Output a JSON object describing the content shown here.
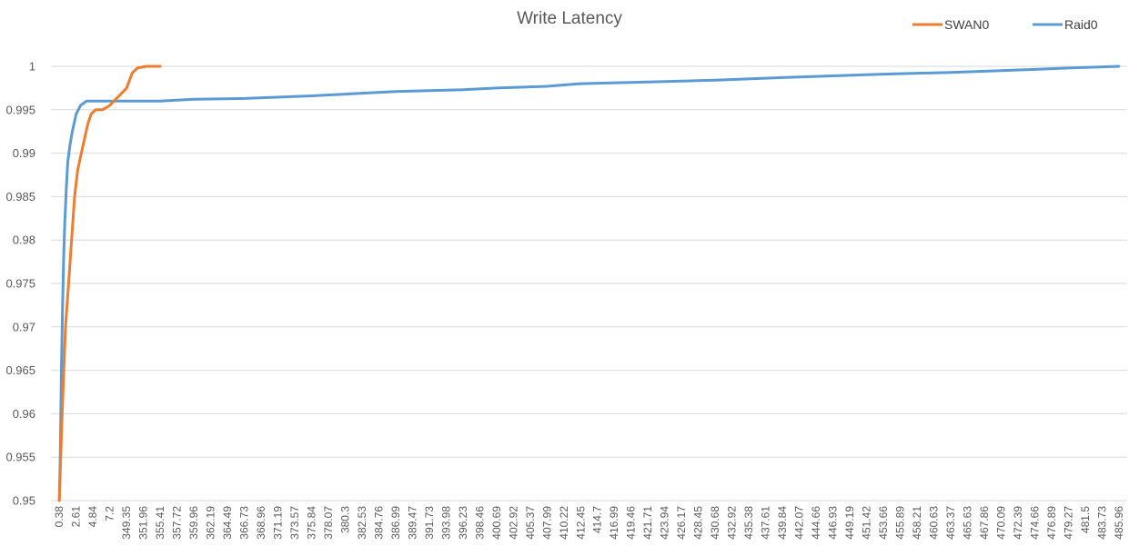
{
  "chart_data": {
    "type": "line",
    "title": "Write Latency",
    "xlabel": "",
    "ylabel": "",
    "ylim": [
      0.95,
      1.0
    ],
    "yticks": [
      0.95,
      0.955,
      0.96,
      0.965,
      0.97,
      0.975,
      0.98,
      0.985,
      0.99,
      0.995,
      1
    ],
    "ytick_labels": [
      "0.95",
      "0.955",
      "0.96",
      "0.965",
      "0.97",
      "0.975",
      "0.98",
      "0.985",
      "0.99",
      "0.995",
      "1"
    ],
    "xtick_labels": [
      "0.38",
      "2.61",
      "4.84",
      "7.2",
      "349.35",
      "351.96",
      "355.41",
      "357.72",
      "359.96",
      "362.19",
      "364.49",
      "366.73",
      "368.96",
      "371.19",
      "373.57",
      "375.84",
      "378.07",
      "380.3",
      "382.53",
      "384.76",
      "386.99",
      "389.47",
      "391.73",
      "393.98",
      "396.23",
      "398.46",
      "400.69",
      "402.92",
      "405.37",
      "407.99",
      "410.22",
      "412.45",
      "414.7",
      "416.99",
      "419.46",
      "421.71",
      "423.94",
      "426.17",
      "428.45",
      "430.68",
      "432.92",
      "435.38",
      "437.61",
      "439.84",
      "442.07",
      "444.66",
      "446.93",
      "449.19",
      "451.42",
      "453.66",
      "455.89",
      "458.21",
      "460.63",
      "463.37",
      "465.63",
      "467.86",
      "470.09",
      "472.39",
      "474.66",
      "476.89",
      "479.27",
      "481.5",
      "483.73",
      "485.96"
    ],
    "grid": true,
    "legend_position": "top-right",
    "series": [
      {
        "name": "SWAN0",
        "color": "#ED7D31",
        "points": [
          [
            0.38,
            0.95
          ],
          [
            0.75,
            0.96
          ],
          [
            1.2,
            0.97
          ],
          [
            1.6,
            0.975
          ],
          [
            2.0,
            0.98
          ],
          [
            2.4,
            0.985
          ],
          [
            2.8,
            0.988
          ],
          [
            3.3,
            0.99
          ],
          [
            3.8,
            0.992
          ],
          [
            4.2,
            0.9935
          ],
          [
            4.6,
            0.9945
          ],
          [
            5.2,
            0.995
          ],
          [
            6.2,
            0.995
          ],
          [
            7.2,
            0.9955
          ],
          [
            349.35,
            0.9975
          ],
          [
            350.2,
            0.9992
          ],
          [
            351.0,
            0.9998
          ],
          [
            352.5,
            1.0
          ],
          [
            355.41,
            1.0
          ]
        ]
      },
      {
        "name": "Raid0",
        "color": "#5B9BD5",
        "points": [
          [
            0.38,
            0.95
          ],
          [
            0.5,
            0.955
          ],
          [
            0.65,
            0.965
          ],
          [
            0.8,
            0.972
          ],
          [
            0.95,
            0.978
          ],
          [
            1.1,
            0.982
          ],
          [
            1.3,
            0.986
          ],
          [
            1.5,
            0.989
          ],
          [
            1.8,
            0.991
          ],
          [
            2.1,
            0.9925
          ],
          [
            2.61,
            0.9945
          ],
          [
            3.2,
            0.9955
          ],
          [
            4.0,
            0.996
          ],
          [
            7.2,
            0.996
          ],
          [
            349.35,
            0.996
          ],
          [
            355.41,
            0.996
          ],
          [
            359.96,
            0.9962
          ],
          [
            366.73,
            0.9963
          ],
          [
            375.84,
            0.9966
          ],
          [
            386.99,
            0.9971
          ],
          [
            396.23,
            0.9973
          ],
          [
            400.69,
            0.9975
          ],
          [
            407.99,
            0.9977
          ],
          [
            412.45,
            0.998
          ],
          [
            421.71,
            0.9982
          ],
          [
            430.68,
            0.9984
          ],
          [
            439.84,
            0.9987
          ],
          [
            446.93,
            0.9989
          ],
          [
            453.66,
            0.9991
          ],
          [
            463.37,
            0.9993
          ],
          [
            470.09,
            0.9995
          ],
          [
            479.27,
            0.9998
          ],
          [
            485.96,
            1.0
          ]
        ]
      }
    ]
  }
}
